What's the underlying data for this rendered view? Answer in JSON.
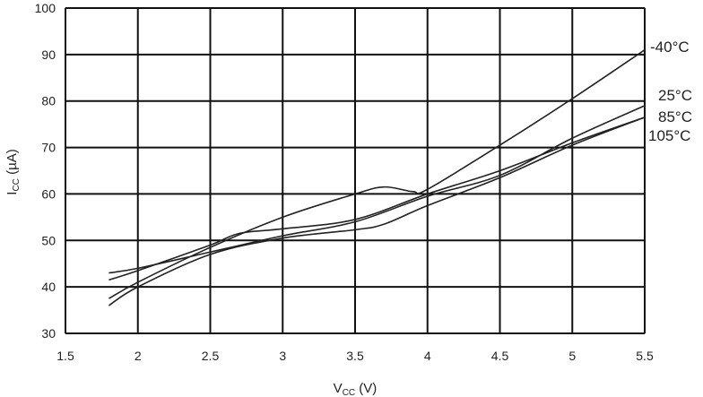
{
  "chart_data": {
    "type": "line",
    "xlabel_main": "V",
    "xlabel_sub": "CC",
    "xlabel_unit": " (V)",
    "ylabel_main": "I",
    "ylabel_sub": "CC",
    "ylabel_unit": " (µA)",
    "xlim": [
      1.5,
      5.5
    ],
    "ylim": [
      30,
      100
    ],
    "xticks": [
      "1.5",
      "2",
      "2.5",
      "3",
      "3.5",
      "4",
      "4.5",
      "5",
      "5.5"
    ],
    "yticks": [
      "30",
      "40",
      "50",
      "60",
      "70",
      "80",
      "90",
      "100"
    ],
    "grid": true,
    "series": [
      {
        "name": "-40°C",
        "x": [
          1.8,
          2.0,
          2.5,
          3.0,
          3.5,
          3.7,
          3.9,
          4.0,
          4.5,
          5.0,
          5.5
        ],
        "y": [
          37.5,
          41,
          48.5,
          55,
          60,
          61.5,
          60.5,
          61,
          70.5,
          80.5,
          91
        ]
      },
      {
        "name": "25°C",
        "x": [
          1.8,
          2.0,
          2.5,
          3.0,
          3.5,
          4.0,
          4.5,
          5.0,
          5.5
        ],
        "y": [
          43,
          44,
          47.5,
          51,
          54,
          59.5,
          64,
          72,
          79
        ]
      },
      {
        "name": "85°C",
        "x": [
          1.8,
          2.0,
          2.5,
          2.7,
          3.0,
          3.5,
          4.0,
          4.5,
          5.0,
          5.5
        ],
        "y": [
          41.5,
          43.5,
          49,
          51.5,
          52.5,
          54.5,
          60,
          65,
          71,
          76.5
        ]
      },
      {
        "name": "105°C",
        "x": [
          1.8,
          2.0,
          2.5,
          3.0,
          3.5,
          3.7,
          4.0,
          4.5,
          5.0,
          5.5
        ],
        "y": [
          36,
          40,
          47,
          50.5,
          52.3,
          53.5,
          57.5,
          63.5,
          70.5,
          76.5
        ]
      }
    ]
  }
}
